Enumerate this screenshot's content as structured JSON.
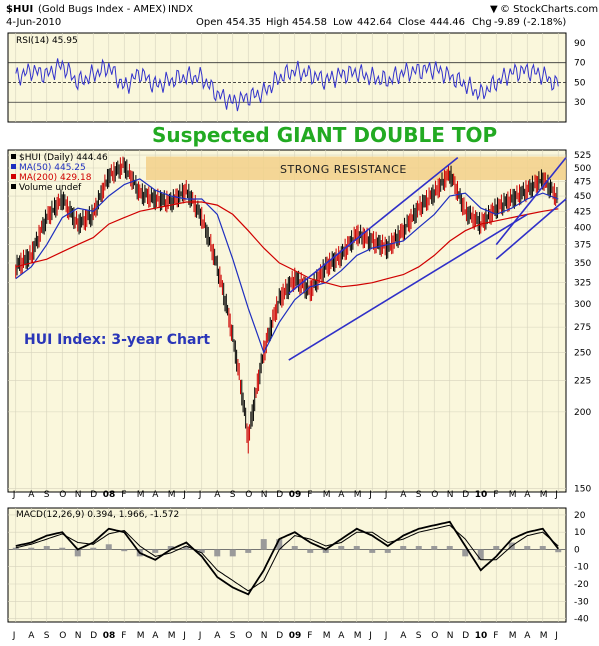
{
  "header": {
    "symbol": "$HUI",
    "name": "(Gold Bugs Index - AMEX)",
    "exchange": "INDX",
    "date": "4-Jun-2010",
    "open_label": "Open",
    "open": "454.35",
    "high_label": "High",
    "high": "454.58",
    "low_label": "Low",
    "low": "442.64",
    "close_label": "Close",
    "close": "444.46",
    "chg_label": "Chg",
    "chg": "-9.89 (-2.18%)",
    "copyright": "© StockCharts.com",
    "copyright_arrow": "▼"
  },
  "annotations": {
    "headline": "Suspected GIANT DOUBLE TOP",
    "resistance": "STRONG RESISTANCE",
    "subtitle": "HUI Index: 3-year Chart"
  },
  "colors": {
    "page_bg": "#ffffff",
    "panel_bg": "#faf7dc",
    "grid": "#d6d3bd",
    "rsi_line": "#3333cc",
    "price_line": "#000000",
    "ma50": "#1f2fbf",
    "ma200": "#d00000",
    "trend": "#3030c8",
    "resistance_band": "#f2d08a",
    "headline": "#22aa22",
    "subtitle": "#2a36b8",
    "macd": "#000000",
    "macd_hist": "#9a9a9a"
  },
  "chart_data": [
    {
      "type": "line",
      "panel": "rsi",
      "title": "RSI(14) 45.95",
      "yticks": [
        30,
        50,
        70,
        90
      ],
      "ylim": [
        10,
        100
      ],
      "reference_lines": [
        30,
        50,
        70
      ],
      "x": [
        "J",
        "A",
        "S",
        "O",
        "N",
        "D",
        "08",
        "F",
        "M",
        "A",
        "M",
        "J",
        "J",
        "A",
        "S",
        "O",
        "N",
        "D",
        "09",
        "F",
        "M",
        "A",
        "M",
        "J",
        "J",
        "A",
        "S",
        "O",
        "N",
        "D",
        "10",
        "F",
        "M",
        "A",
        "M",
        "J"
      ],
      "values": [
        55,
        62,
        58,
        68,
        50,
        58,
        66,
        45,
        60,
        47,
        52,
        56,
        55,
        38,
        30,
        35,
        40,
        55,
        62,
        58,
        52,
        58,
        60,
        55,
        52,
        60,
        62,
        64,
        56,
        48,
        38,
        50,
        60,
        62,
        58,
        46
      ]
    },
    {
      "type": "line",
      "panel": "price",
      "title": "$HUI (Daily) 444.46",
      "yticks": [
        150,
        200,
        225,
        250,
        275,
        300,
        325,
        350,
        375,
        400,
        425,
        450,
        475,
        500,
        525
      ],
      "ylim": [
        148,
        535
      ],
      "x": [
        "J",
        "A",
        "S",
        "O",
        "N",
        "D",
        "08",
        "F",
        "M",
        "A",
        "M",
        "J",
        "J",
        "A",
        "S",
        "O",
        "N",
        "D",
        "09",
        "F",
        "M",
        "A",
        "M",
        "J",
        "J",
        "A",
        "S",
        "O",
        "N",
        "D",
        "10",
        "F",
        "M",
        "A",
        "M",
        "J"
      ],
      "series": [
        {
          "name": "$HUI (Daily) 444.46",
          "values": [
            345,
            360,
            415,
            445,
            405,
            420,
            485,
            505,
            455,
            445,
            440,
            460,
            415,
            345,
            265,
            180,
            250,
            305,
            330,
            315,
            345,
            360,
            390,
            380,
            370,
            395,
            430,
            455,
            490,
            425,
            405,
            430,
            445,
            460,
            480,
            445
          ]
        },
        {
          "name": "MA(50) 445.25",
          "values": [
            330,
            345,
            375,
            415,
            430,
            425,
            450,
            470,
            480,
            460,
            450,
            445,
            445,
            420,
            355,
            295,
            250,
            280,
            305,
            320,
            325,
            340,
            360,
            370,
            375,
            380,
            400,
            420,
            450,
            455,
            430,
            420,
            430,
            445,
            455,
            445
          ]
        },
        {
          "name": "MA(200) 429.18",
          "values": [
            345,
            350,
            355,
            365,
            375,
            385,
            405,
            415,
            425,
            430,
            435,
            440,
            440,
            435,
            420,
            395,
            370,
            350,
            340,
            330,
            325,
            320,
            322,
            325,
            330,
            335,
            345,
            360,
            380,
            395,
            405,
            410,
            415,
            420,
            425,
            429
          ]
        }
      ],
      "legend": [
        "$HUI (Daily) 444.46",
        "MA(50) 445.25",
        "MA(200) 429.18",
        "Volume undef"
      ]
    },
    {
      "type": "line",
      "panel": "macd",
      "title": "MACD(12,26,9) 0.394, 1.966, -1.572",
      "yticks": [
        -40,
        -30,
        -20,
        -10,
        0,
        10,
        20
      ],
      "ylim": [
        -42,
        24
      ],
      "x": [
        "J",
        "A",
        "S",
        "O",
        "N",
        "D",
        "08",
        "F",
        "M",
        "A",
        "M",
        "J",
        "J",
        "A",
        "S",
        "O",
        "N",
        "D",
        "09",
        "F",
        "M",
        "A",
        "M",
        "J",
        "J",
        "A",
        "S",
        "O",
        "N",
        "D",
        "10",
        "F",
        "M",
        "A",
        "M",
        "J"
      ],
      "series": [
        {
          "name": "MACD",
          "values": [
            2,
            4,
            8,
            10,
            0,
            4,
            12,
            10,
            -2,
            -6,
            0,
            4,
            -4,
            -16,
            -22,
            -26,
            -12,
            6,
            10,
            4,
            0,
            6,
            12,
            8,
            2,
            8,
            12,
            14,
            16,
            2,
            -12,
            -4,
            6,
            10,
            12,
            0.4
          ]
        },
        {
          "name": "Signal",
          "values": [
            1,
            3,
            6,
            9,
            4,
            3,
            9,
            11,
            2,
            -4,
            -2,
            2,
            -2,
            -12,
            -18,
            -24,
            -18,
            0,
            8,
            6,
            2,
            4,
            10,
            10,
            4,
            6,
            10,
            12,
            14,
            6,
            -6,
            -6,
            2,
            8,
            10,
            2
          ]
        },
        {
          "name": "Histogram",
          "values": [
            1,
            1,
            2,
            1,
            -4,
            1,
            3,
            -1,
            -4,
            -2,
            2,
            2,
            -2,
            -4,
            -4,
            -2,
            6,
            6,
            2,
            -2,
            -2,
            2,
            2,
            -2,
            -2,
            2,
            2,
            2,
            2,
            -4,
            -6,
            2,
            4,
            2,
            2,
            -1.6
          ]
        }
      ]
    }
  ],
  "x_axis_labels": [
    "J",
    "A",
    "S",
    "O",
    "N",
    "D",
    "08",
    "F",
    "M",
    "A",
    "M",
    "J",
    "J",
    "A",
    "S",
    "O",
    "N",
    "D",
    "09",
    "F",
    "M",
    "A",
    "M",
    "J",
    "J",
    "A",
    "S",
    "O",
    "N",
    "D",
    "10",
    "F",
    "M",
    "A",
    "M",
    "J"
  ]
}
